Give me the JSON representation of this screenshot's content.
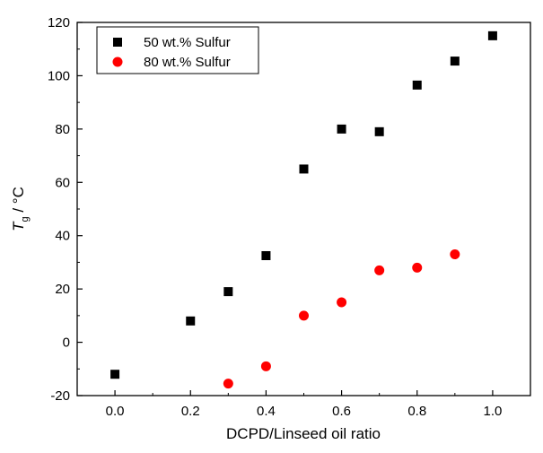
{
  "chart_data": {
    "type": "scatter",
    "xlabel": "DCPD/Linseed oil ratio",
    "ylabel": {
      "symbol": "T",
      "subscript": "g",
      "unit": " / °C"
    },
    "xlim": [
      -0.1,
      1.1
    ],
    "ylim": [
      -20,
      120
    ],
    "xticks": [
      0.0,
      0.2,
      0.4,
      0.6,
      0.8,
      1.0
    ],
    "xtick_labels": [
      "0.0",
      "0.2",
      "0.4",
      "0.6",
      "0.8",
      "1.0"
    ],
    "yticks": [
      -20,
      0,
      20,
      40,
      60,
      80,
      100,
      120
    ],
    "ytick_labels": [
      "-20",
      "0",
      "20",
      "40",
      "60",
      "80",
      "100",
      "120"
    ],
    "grid": false,
    "legend_position": "top-left",
    "series": [
      {
        "name": "50 wt.% Sulfur",
        "marker": "square",
        "color": "#000000",
        "x": [
          0.0,
          0.2,
          0.3,
          0.4,
          0.5,
          0.6,
          0.7,
          0.8,
          0.9,
          1.0
        ],
        "y": [
          -12,
          8,
          19,
          32.5,
          65,
          80,
          79,
          96.5,
          105.5,
          115
        ]
      },
      {
        "name": "80 wt.% Sulfur",
        "marker": "circle",
        "color": "#ff0000",
        "x": [
          0.3,
          0.4,
          0.5,
          0.6,
          0.7,
          0.8,
          0.9
        ],
        "y": [
          -15.5,
          -9,
          10,
          15,
          27,
          28,
          33
        ]
      }
    ]
  }
}
